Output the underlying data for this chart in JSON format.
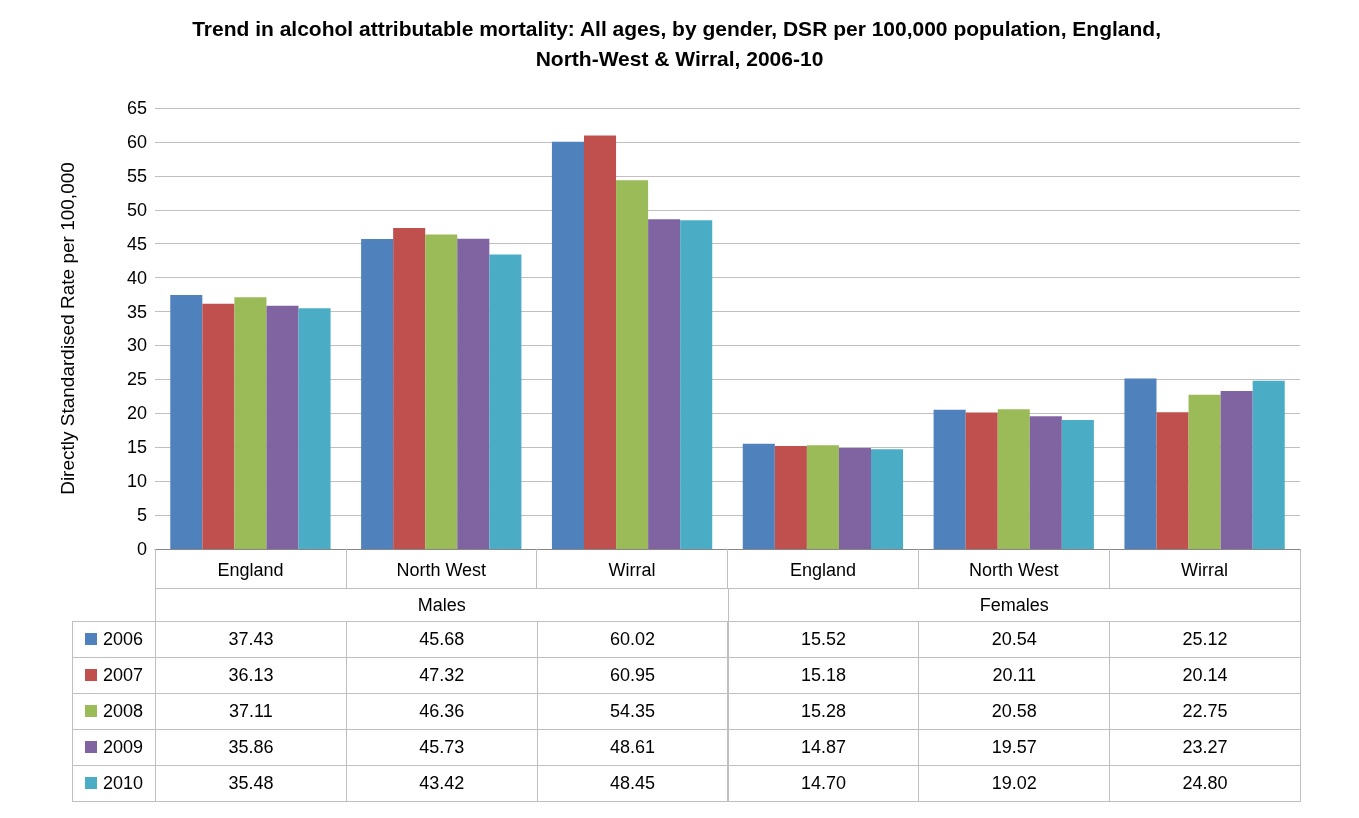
{
  "chart_data": {
    "type": "bar",
    "title": "Trend in alcohol attributable mortality: All ages, by gender, DSR per 100,000 population, England, North-West & Wirral, 2006-10",
    "ylabel": "Directly Standardised Rate per 100,000",
    "categories": [
      "England",
      "North West",
      "Wirral",
      "England",
      "North West",
      "Wirral"
    ],
    "annotations": [
      "Males",
      "Females"
    ],
    "series": [
      {
        "name": "2006",
        "color": "#4f81bd",
        "values": [
          37.43,
          45.68,
          60.02,
          15.52,
          20.54,
          25.12
        ],
        "value_labels": [
          "37.43",
          "45.68",
          "60.02",
          "15.52",
          "20.54",
          "25.12"
        ]
      },
      {
        "name": "2007",
        "color": "#c0504d",
        "values": [
          36.13,
          47.32,
          60.95,
          15.18,
          20.11,
          20.14
        ],
        "value_labels": [
          "36.13",
          "47.32",
          "60.95",
          "15.18",
          "20.11",
          "20.14"
        ]
      },
      {
        "name": "2008",
        "color": "#9bbb59",
        "values": [
          37.11,
          46.36,
          54.35,
          15.28,
          20.58,
          22.75
        ],
        "value_labels": [
          "37.11",
          "46.36",
          "54.35",
          "15.28",
          "20.58",
          "22.75"
        ]
      },
      {
        "name": "2009",
        "color": "#8064a2",
        "values": [
          35.86,
          45.73,
          48.61,
          14.87,
          19.57,
          23.27
        ],
        "value_labels": [
          "35.86",
          "45.73",
          "48.61",
          "14.87",
          "19.57",
          "23.27"
        ]
      },
      {
        "name": "2010",
        "color": "#4bacc6",
        "values": [
          35.48,
          43.42,
          48.45,
          14.7,
          19.02,
          24.8
        ],
        "value_labels": [
          "35.48",
          "43.42",
          "48.45",
          "14.70",
          "19.02",
          "24.80"
        ]
      }
    ],
    "ylim": [
      0,
      65
    ],
    "yticks": [
      0,
      5,
      10,
      15,
      20,
      25,
      30,
      35,
      40,
      45,
      50,
      55,
      60,
      65
    ],
    "grid": true,
    "legend": "bottom left"
  }
}
